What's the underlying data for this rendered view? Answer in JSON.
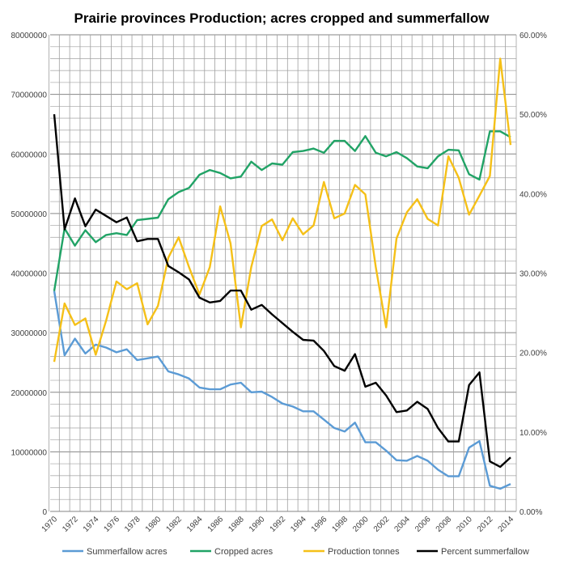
{
  "chart_data": {
    "type": "line",
    "title": "Prairie provinces Production; acres cropped and summerfallow",
    "x": [
      1970,
      1971,
      1972,
      1973,
      1974,
      1975,
      1976,
      1977,
      1978,
      1979,
      1980,
      1981,
      1982,
      1983,
      1984,
      1985,
      1986,
      1987,
      1988,
      1989,
      1990,
      1991,
      1992,
      1993,
      1994,
      1995,
      1996,
      1997,
      1998,
      1999,
      2000,
      2001,
      2002,
      2003,
      2004,
      2005,
      2006,
      2007,
      2008,
      2009,
      2010,
      2011,
      2012,
      2013,
      2014
    ],
    "x_tick_labels": [
      "1970",
      "1972",
      "1974",
      "1976",
      "1978",
      "1980",
      "1982",
      "1984",
      "1986",
      "1988",
      "1990",
      "1992",
      "1994",
      "1996",
      "1998",
      "2000",
      "2002",
      "2004",
      "2006",
      "2008",
      "2010",
      "2012",
      "2014"
    ],
    "y_left": {
      "ylim": [
        0,
        80000000
      ],
      "tick_labels": [
        "0",
        "10000000",
        "20000000",
        "30000000",
        "40000000",
        "50000000",
        "60000000",
        "70000000",
        "80000000"
      ]
    },
    "y_right": {
      "ylim": [
        0,
        0.6
      ],
      "tick_labels": [
        "0.00%",
        "10.00%",
        "20.00%",
        "30.00%",
        "40.00%",
        "50.00%",
        "60.00%"
      ]
    },
    "grid": true,
    "legend_position": "bottom",
    "series": [
      {
        "name": "Summerfallow acres",
        "axis": "left",
        "color": "#5b9bd5",
        "values": [
          37.0,
          26.2,
          29.0,
          26.5,
          28.0,
          27.5,
          26.7,
          27.2,
          25.4,
          25.7,
          26.0,
          23.5,
          23.0,
          22.3,
          20.8,
          20.5,
          20.5,
          21.3,
          21.6,
          20.0,
          20.1,
          19.2,
          18.1,
          17.6,
          16.8,
          16.8,
          15.4,
          14.0,
          13.4,
          14.9,
          11.6,
          11.6,
          10.2,
          8.6,
          8.5,
          9.3,
          8.5,
          7.0,
          5.9,
          5.9,
          10.7,
          11.8,
          4.3,
          3.8,
          4.6
        ]
      },
      {
        "name": "Cropped acres",
        "axis": "left",
        "color": "#21a366",
        "values": [
          37.0,
          47.5,
          44.6,
          47.2,
          45.2,
          46.4,
          46.7,
          46.4,
          48.9,
          49.1,
          49.3,
          52.4,
          53.6,
          54.3,
          56.5,
          57.3,
          56.8,
          55.9,
          56.2,
          58.7,
          57.3,
          58.4,
          58.2,
          60.3,
          60.5,
          60.9,
          60.2,
          62.2,
          62.2,
          60.5,
          63.0,
          60.2,
          59.6,
          60.3,
          59.3,
          57.9,
          57.6,
          59.6,
          60.7,
          60.6,
          56.6,
          55.7,
          63.8,
          63.8,
          62.8
        ]
      },
      {
        "name": "Production tonnes",
        "axis": "left",
        "color": "#f5c018",
        "values": [
          25.1,
          34.9,
          31.3,
          32.4,
          26.3,
          32.0,
          38.6,
          37.3,
          38.3,
          31.4,
          34.5,
          42.6,
          46.0,
          41.0,
          36.4,
          41.0,
          51.2,
          45.0,
          30.9,
          41.0,
          47.9,
          49.0,
          45.5,
          49.2,
          46.5,
          48.0,
          55.3,
          49.2,
          50.0,
          54.8,
          53.2,
          41.0,
          30.9,
          45.8,
          50.2,
          52.4,
          49.1,
          48.0,
          59.6,
          56.0,
          49.8,
          53.0,
          56.3,
          76.0,
          61.5
        ]
      },
      {
        "name": "Percent summerfallow",
        "axis": "right",
        "color": "#000000",
        "values": [
          50.0,
          35.5,
          39.4,
          35.9,
          38.0,
          37.2,
          36.4,
          37.0,
          34.0,
          34.3,
          34.3,
          30.9,
          30.1,
          29.2,
          26.9,
          26.3,
          26.5,
          27.8,
          27.8,
          25.4,
          26.0,
          24.8,
          23.7,
          22.6,
          21.6,
          21.5,
          20.2,
          18.3,
          17.7,
          19.8,
          15.7,
          16.2,
          14.6,
          12.5,
          12.7,
          13.8,
          12.9,
          10.5,
          8.8,
          8.8,
          15.9,
          17.5,
          6.3,
          5.6,
          6.8
        ]
      }
    ],
    "value_units_note_left": "millions",
    "value_units_note_right": "percent"
  }
}
